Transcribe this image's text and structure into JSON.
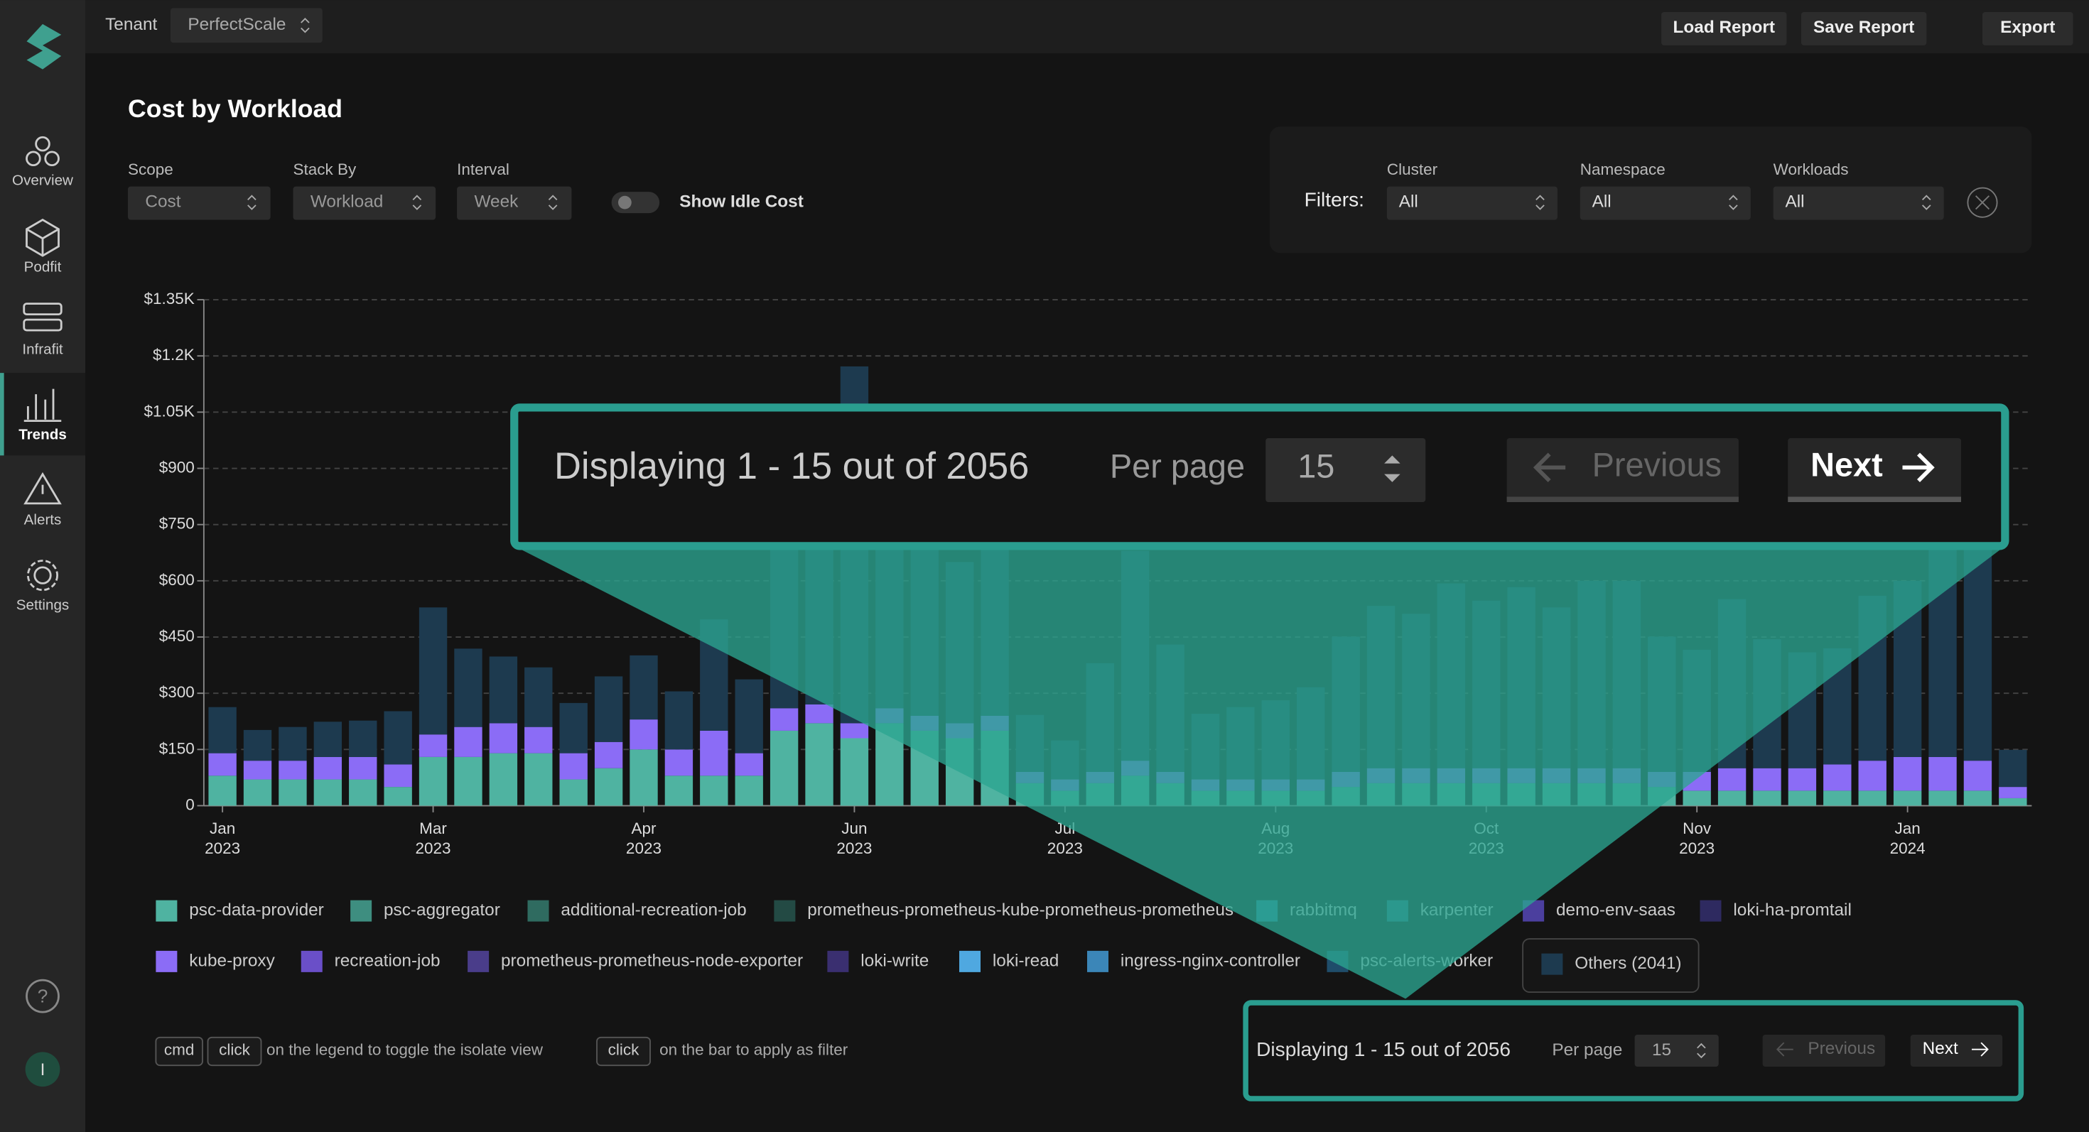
{
  "sidebar": {
    "nav": [
      "Overview",
      "Podfit",
      "Infrafit",
      "Trends",
      "Alerts",
      "Settings"
    ],
    "help": "?",
    "avatar": "I"
  },
  "header": {
    "tenant_label": "Tenant",
    "tenant": "PerfectScale",
    "buttons": [
      "Load Report",
      "Save Report",
      "Export"
    ]
  },
  "title": "Cost by Workload",
  "controls": [
    {
      "label": "Scope",
      "value": "Cost"
    },
    {
      "label": "Stack By",
      "value": "Workload"
    },
    {
      "label": "Interval",
      "value": "Week"
    }
  ],
  "idle_toggle": "Show Idle Cost",
  "filters": {
    "label": "Filters:",
    "items": [
      {
        "label": "Cluster",
        "value": "All"
      },
      {
        "label": "Namespace",
        "value": "All"
      },
      {
        "label": "Workloads",
        "value": "All"
      }
    ]
  },
  "chart_data": {
    "type": "stacked-bar",
    "categories": [
      "Jan 2023",
      null,
      null,
      null,
      null,
      null,
      "Mar 2023",
      null,
      null,
      null,
      null,
      null,
      "Apr 2023",
      null,
      null,
      null,
      null,
      null,
      "Jun 2023",
      null,
      null,
      null,
      null,
      null,
      "Jul 2023",
      null,
      null,
      null,
      null,
      null,
      "Aug 2023",
      null,
      null,
      null,
      null,
      null,
      "Oct 2023",
      null,
      null,
      null,
      null,
      null,
      "Nov 2023",
      null,
      null,
      null,
      null,
      null,
      "Jan 2024",
      null,
      null,
      null
    ],
    "ylim": [
      0,
      1350
    ],
    "yticks": [
      0,
      {
        "value": 150,
        "label": "$150"
      },
      {
        "value": 300,
        "label": "$300"
      },
      {
        "value": 450,
        "label": "$450"
      },
      {
        "value": 600,
        "label": "$600"
      },
      {
        "value": 750,
        "label": "$750"
      },
      {
        "value": 900,
        "label": "$900"
      },
      {
        "value": 1050,
        "label": "$1.05K"
      },
      {
        "value": 1200,
        "label": "$1.2K"
      },
      {
        "value": 1350,
        "label": "$1.35K"
      }
    ],
    "grid": true,
    "series": [
      {
        "name": "psc-data-provider",
        "color": "#4fb3a1",
        "values": [
          80,
          70,
          70,
          70,
          70,
          50,
          130,
          130,
          140,
          140,
          70,
          100,
          150,
          80,
          80,
          80,
          200,
          220,
          180,
          220,
          200,
          180,
          200,
          60,
          40,
          60,
          80,
          60,
          40,
          40,
          40,
          40,
          50,
          60,
          60,
          60,
          60,
          60,
          60,
          60,
          60,
          50,
          40,
          40,
          40,
          40,
          40,
          40,
          40,
          40,
          40,
          20
        ]
      },
      {
        "name": "psc-aggregator",
        "color": "#3e8e80"
      },
      {
        "name": "additional-recreation-job",
        "color": "#2f6b60"
      },
      {
        "name": "prometheus-prometheus-kube-prometheus-prometheus",
        "color": "#234a44"
      },
      {
        "name": "rabbitmq",
        "color": "#2a7d99"
      },
      {
        "name": "karpenter",
        "color": "#2a6a80"
      },
      {
        "name": "demo-env-saas",
        "color": "#4b3f9e"
      },
      {
        "name": "loki-ha-promtail",
        "color": "#2e2a60"
      },
      {
        "name": "kube-proxy",
        "color": "#8b6cf6",
        "values": [
          60,
          50,
          50,
          60,
          60,
          60,
          60,
          80,
          80,
          70,
          70,
          70,
          80,
          70,
          120,
          60,
          60,
          50,
          40,
          40,
          40,
          40,
          40,
          30,
          30,
          30,
          40,
          30,
          30,
          30,
          30,
          30,
          40,
          40,
          40,
          40,
          40,
          40,
          40,
          40,
          40,
          40,
          50,
          60,
          60,
          60,
          70,
          80,
          90,
          90,
          80,
          30
        ]
      },
      {
        "name": "recreation-job",
        "color": "#6a4fc8"
      },
      {
        "name": "prometheus-prometheus-node-exporter",
        "color": "#4a3d8a"
      },
      {
        "name": "loki-write",
        "color": "#3a2f70"
      },
      {
        "name": "loki-read",
        "color": "#4fa8e0"
      },
      {
        "name": "ingress-nginx-controller",
        "color": "#3b86b8"
      },
      {
        "name": "psc-alerts-worker",
        "color": "#1f4d6a"
      },
      {
        "name": "Others (2041)",
        "color": "#1d3a4f",
        "values": [
          123,
          82,
          90,
          94,
          97,
          142,
          339,
          209,
          178,
          159,
          134,
          175,
          171,
          155,
          297,
          197,
          440,
          450,
          952,
          490,
          660,
          430,
          510,
          152,
          104,
          290,
          560,
          340,
          175,
          193,
          211,
          246,
          361,
          433,
          412,
          493,
          447,
          483,
          429,
          500,
          500,
          361,
          326,
          451,
          344,
          309,
          310,
          440,
          470,
          560,
          610,
          99
        ]
      }
    ]
  },
  "hints": {
    "key1": "cmd",
    "key2": "click",
    "text1": "on the legend to toggle the isolate view",
    "key3": "click",
    "text2": "on the bar to apply as filter"
  },
  "pagination": {
    "displaying": "Displaying 1 - 15 out of 2056",
    "per_page_label": "Per page",
    "per_page": "15",
    "previous": "Previous",
    "next": "Next"
  }
}
